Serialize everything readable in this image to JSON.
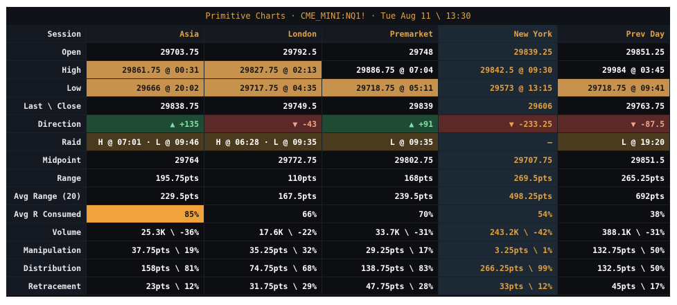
{
  "title": "Primitive Charts · CME_MINI:NQ1! · Tue Aug 11 \\ 13:30",
  "columns": [
    "Session",
    "Asia",
    "London",
    "Premarket",
    "New York",
    "Prev Day"
  ],
  "rows": [
    {
      "label": "Open",
      "cells": [
        "29703.75",
        "29792.5",
        "29748",
        "29839.25",
        "29851.25"
      ]
    },
    {
      "label": "High",
      "cells": [
        "29861.75 @ 00:31",
        "29827.75 @ 02:13",
        "29886.75 @ 07:04",
        "29842.5 @ 09:30",
        "29984 @ 03:45"
      ]
    },
    {
      "label": "Low",
      "cells": [
        "29666 @ 20:02",
        "29717.75 @ 04:35",
        "29718.75 @ 05:11",
        "29573 @ 13:15",
        "29718.75 @ 09:41"
      ]
    },
    {
      "label": "Last \\ Close",
      "cells": [
        "29838.75",
        "29749.5",
        "29839",
        "29606",
        "29763.75"
      ]
    },
    {
      "label": "Direction",
      "cells": [
        "▲ +135",
        "▼ -43",
        "▲ +91",
        "▼ -233.25",
        "▼ -87.5"
      ]
    },
    {
      "label": "Raid",
      "cells": [
        "H @ 07:01 · L @ 09:46",
        "H @ 06:28 · L @ 09:35",
        "L @ 09:35",
        "–",
        "L @ 19:20"
      ]
    },
    {
      "label": "Midpoint",
      "cells": [
        "29764",
        "29772.75",
        "29802.75",
        "29707.75",
        "29851.5"
      ]
    },
    {
      "label": "Range",
      "cells": [
        "195.75pts",
        "110pts",
        "168pts",
        "269.5pts",
        "265.25pts"
      ]
    },
    {
      "label": "Avg Range (20)",
      "cells": [
        "229.5pts",
        "167.5pts",
        "239.5pts",
        "498.25pts",
        "692pts"
      ]
    },
    {
      "label": "Avg R Consumed",
      "cells": [
        "85%",
        "66%",
        "70%",
        "54%",
        "38%"
      ]
    },
    {
      "label": "Volume",
      "cells": [
        "25.3K \\ -36%",
        "17.6K \\ -22%",
        "33.7K \\ -31%",
        "243.2K \\ -42%",
        "388.1K \\ -31%"
      ]
    },
    {
      "label": "Manipulation",
      "cells": [
        "37.75pts \\ 19%",
        "35.25pts \\ 32%",
        "29.25pts \\ 17%",
        "3.25pts \\ 1%",
        "132.75pts \\ 50%"
      ]
    },
    {
      "label": "Distribution",
      "cells": [
        "158pts \\ 81%",
        "74.75pts \\ 68%",
        "138.75pts \\ 83%",
        "266.25pts \\ 99%",
        "132.5pts \\ 50%"
      ]
    },
    {
      "label": "Retracement",
      "cells": [
        "23pts \\ 12%",
        "31.75pts \\ 29%",
        "47.75pts \\ 28%",
        "33pts \\ 12%",
        "45pts \\ 17%"
      ]
    }
  ],
  "colors": {
    "background": "#0c0e12",
    "accent": "#e6a23c",
    "highlight": "#c7924d",
    "up": "#1f4a34",
    "down": "#5b2a28",
    "raid": "#4a3a1e",
    "current_session": "#1d2835"
  }
}
